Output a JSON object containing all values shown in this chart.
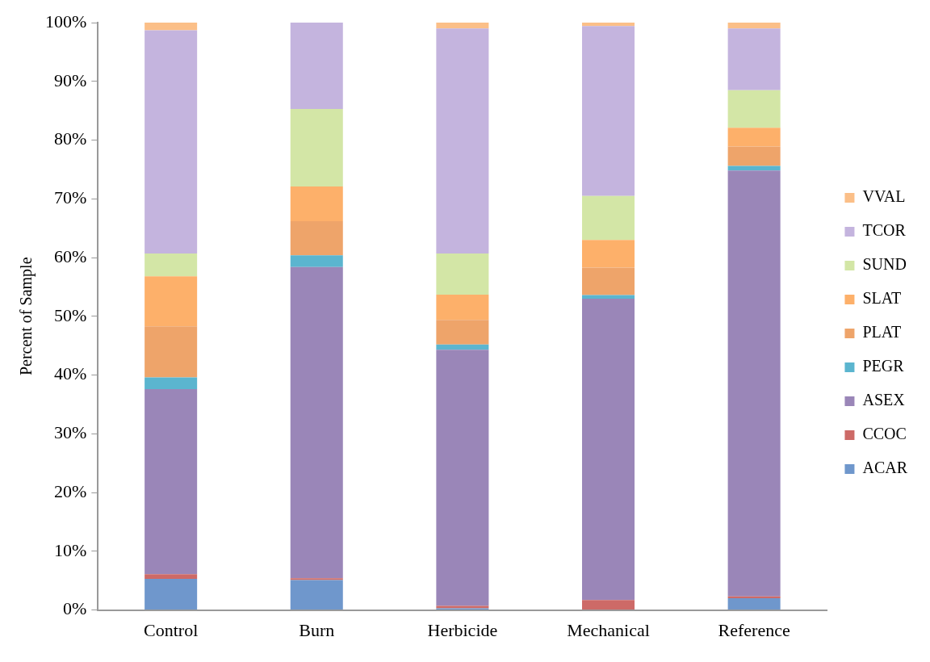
{
  "chart_data": {
    "type": "bar",
    "stacked": true,
    "ylabel": "Percent of Sample",
    "categories": [
      "Control",
      "Burn",
      "Herbicide",
      "Mechanical",
      "Reference"
    ],
    "series": [
      {
        "name": "ACAR",
        "color": "#6f97cc",
        "values": [
          5.3,
          5.1,
          0.3,
          0,
          2.0
        ]
      },
      {
        "name": "CCOC",
        "color": "#cd6a67",
        "values": [
          0.8,
          0.3,
          0.4,
          1.7,
          0.3
        ]
      },
      {
        "name": "ASEX",
        "color": "#9a86b8",
        "values": [
          31.5,
          53.0,
          43.6,
          51.3,
          72.5
        ]
      },
      {
        "name": "PEGR",
        "color": "#5bb5cf",
        "values": [
          2.0,
          2.0,
          0.9,
          0.6,
          0.8
        ]
      },
      {
        "name": "PLAT",
        "color": "#eea46a",
        "values": [
          8.7,
          5.8,
          4.2,
          4.7,
          3.3
        ]
      },
      {
        "name": "SLAT",
        "color": "#fdb06a",
        "values": [
          8.5,
          5.9,
          4.3,
          4.7,
          3.2
        ]
      },
      {
        "name": "SUND",
        "color": "#d3e6a6",
        "values": [
          3.9,
          13.2,
          7.0,
          7.5,
          6.4
        ]
      },
      {
        "name": "TCOR",
        "color": "#c4b4de",
        "values": [
          38.0,
          14.7,
          38.3,
          28.9,
          10.5
        ]
      },
      {
        "name": "VVAL",
        "color": "#fbbf88",
        "values": [
          1.3,
          0,
          1.0,
          0.6,
          1.0
        ]
      }
    ],
    "ylim": [
      0,
      100
    ],
    "yticks": [
      {
        "value": 0,
        "label": "0%"
      },
      {
        "value": 10,
        "label": "10%"
      },
      {
        "value": 20,
        "label": "20%"
      },
      {
        "value": 30,
        "label": "30%"
      },
      {
        "value": 40,
        "label": "40%"
      },
      {
        "value": 50,
        "label": "50%"
      },
      {
        "value": 60,
        "label": "60%"
      },
      {
        "value": 70,
        "label": "70%"
      },
      {
        "value": 80,
        "label": "80%"
      },
      {
        "value": 90,
        "label": "90%"
      },
      {
        "value": 100,
        "label": "100%"
      }
    ],
    "grid": false,
    "legend": "right"
  }
}
